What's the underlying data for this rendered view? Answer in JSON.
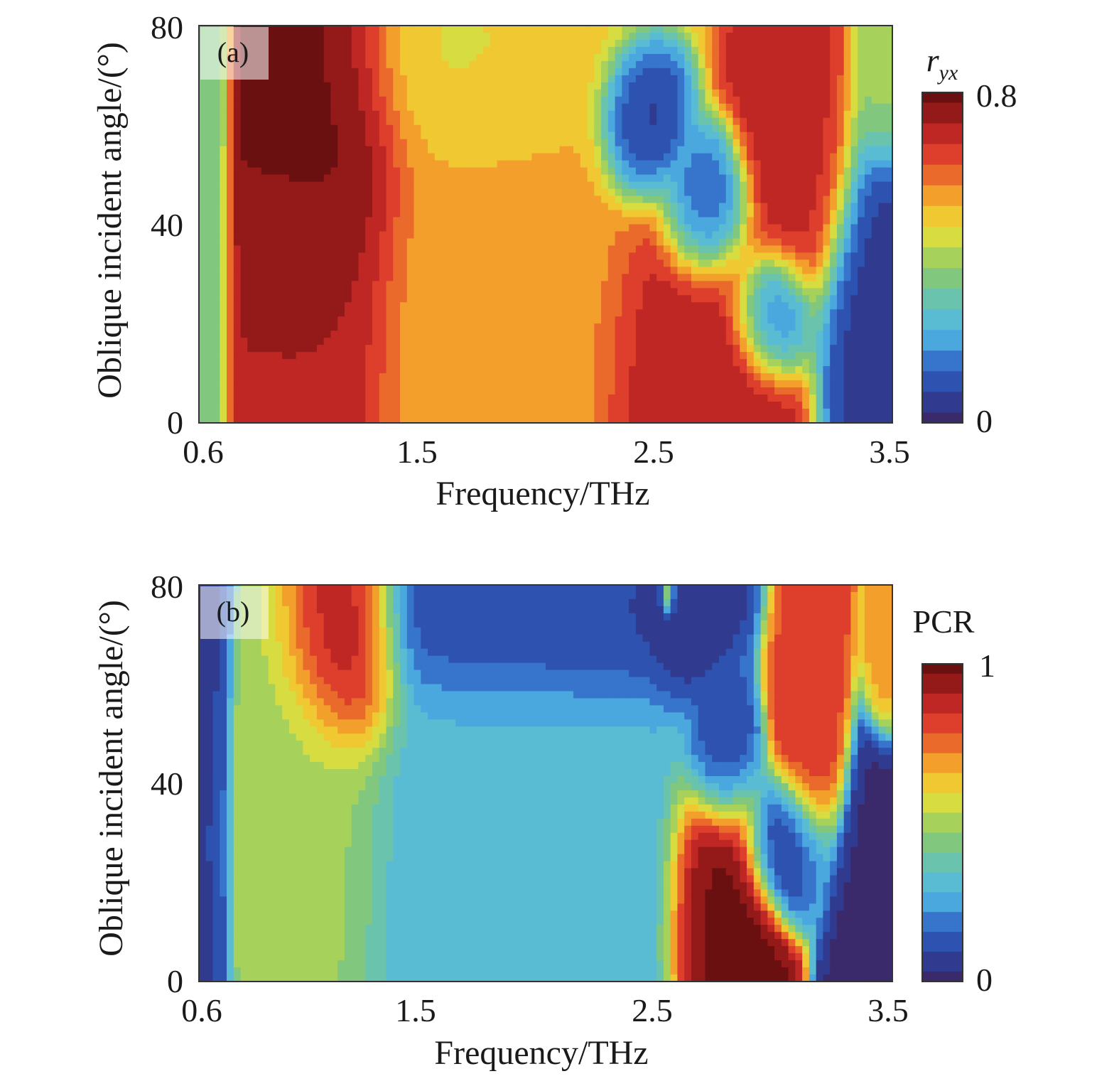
{
  "chart_data": [
    {
      "type": "heatmap",
      "panel_label": "(a)",
      "xlabel": "Frequency/THz",
      "ylabel": "Oblique incident angle/(°)",
      "xlim": [
        0.6,
        3.5
      ],
      "ylim": [
        0,
        80
      ],
      "xticks": [
        "0.6",
        "1.5",
        "2.5",
        "3.5"
      ],
      "yticks": [
        "0",
        "40",
        "80"
      ],
      "colorbar": {
        "title_main": "r",
        "title_sub": "yx",
        "min": 0,
        "max": 0.8,
        "min_label": "0",
        "max_label": "0.8"
      },
      "features": [
        {
          "x": 0.63,
          "y": 40,
          "value": 0.33,
          "sx": 0.06,
          "sy": 90
        },
        {
          "x": 1.12,
          "y": 58,
          "value": 0.8,
          "sx": 0.24,
          "sy": 30
        },
        {
          "x": 1.05,
          "y": 10,
          "value": 0.72,
          "sx": 0.22,
          "sy": 35
        },
        {
          "x": 1.85,
          "y": 30,
          "value": 0.54,
          "sx": 0.4,
          "sy": 45
        },
        {
          "x": 1.75,
          "y": 72,
          "value": 0.45,
          "sx": 0.35,
          "sy": 15
        },
        {
          "x": 2.7,
          "y": 10,
          "value": 0.72,
          "sx": 0.28,
          "sy": 25
        },
        {
          "x": 2.45,
          "y": 60,
          "value": 0.04,
          "sx": 0.12,
          "sy": 10
        },
        {
          "x": 2.72,
          "y": 42,
          "value": 0.05,
          "sx": 0.12,
          "sy": 10
        },
        {
          "x": 3.0,
          "y": 22,
          "value": 0.05,
          "sx": 0.12,
          "sy": 9
        },
        {
          "x": 3.12,
          "y": 52,
          "value": 0.7,
          "sx": 0.16,
          "sy": 20
        },
        {
          "x": 3.42,
          "y": 20,
          "value": 0.05,
          "sx": 0.15,
          "sy": 28
        },
        {
          "x": 3.46,
          "y": 68,
          "value": 0.4,
          "sx": 0.08,
          "sy": 12
        }
      ]
    },
    {
      "type": "heatmap",
      "panel_label": "(b)",
      "xlabel": "Frequency/THz",
      "ylabel": "Oblique incident angle/(°)",
      "xlim": [
        0.6,
        3.5
      ],
      "ylim": [
        0,
        80
      ],
      "xticks": [
        "0.6",
        "1.5",
        "2.5",
        "3.5"
      ],
      "yticks": [
        "0",
        "40",
        "80"
      ],
      "colorbar": {
        "title_main": "PCR",
        "title_sub": "",
        "min": 0,
        "max": 1,
        "min_label": "0",
        "max_label": "1"
      },
      "features": [
        {
          "x": 0.65,
          "y": 40,
          "value": 0.08,
          "sx": 0.05,
          "sy": 90
        },
        {
          "x": 1.2,
          "y": 68,
          "value": 1.0,
          "sx": 0.16,
          "sy": 16
        },
        {
          "x": 1.05,
          "y": 30,
          "value": 0.5,
          "sx": 0.22,
          "sy": 35
        },
        {
          "x": 1.9,
          "y": 25,
          "value": 0.3,
          "sx": 0.45,
          "sy": 45
        },
        {
          "x": 1.95,
          "y": 72,
          "value": 0.05,
          "sx": 0.45,
          "sy": 12
        },
        {
          "x": 2.62,
          "y": 74,
          "value": 0.05,
          "sx": 0.12,
          "sy": 10
        },
        {
          "x": 2.56,
          "y": 78,
          "value": 0.8,
          "sx": 0.02,
          "sy": 3
        },
        {
          "x": 2.8,
          "y": 12,
          "value": 1.0,
          "sx": 0.14,
          "sy": 22
        },
        {
          "x": 2.8,
          "y": 45,
          "value": 0.05,
          "sx": 0.1,
          "sy": 10
        },
        {
          "x": 3.05,
          "y": 28,
          "value": 0.05,
          "sx": 0.12,
          "sy": 9
        },
        {
          "x": 3.15,
          "y": 52,
          "value": 0.82,
          "sx": 0.1,
          "sy": 18
        },
        {
          "x": 3.48,
          "y": 64,
          "value": 0.7,
          "sx": 0.06,
          "sy": 9
        },
        {
          "x": 3.45,
          "y": 12,
          "value": 0.02,
          "sx": 0.12,
          "sy": 25
        }
      ]
    }
  ],
  "colormap": [
    "#3b2a6b",
    "#2c3f9a",
    "#2f64c4",
    "#4aa8df",
    "#5fc3cf",
    "#74c58a",
    "#a6d15a",
    "#e7e038",
    "#f6b02c",
    "#ea6a2c",
    "#d9312c",
    "#a21c1c",
    "#6b1010"
  ]
}
